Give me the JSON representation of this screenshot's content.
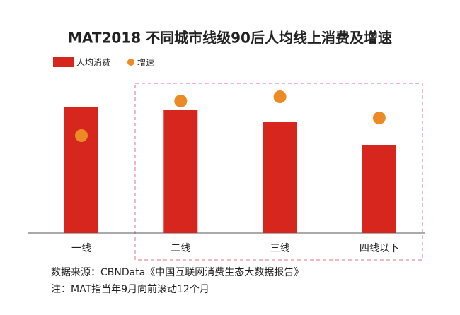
{
  "chart_data": {
    "type": "bar",
    "title": "MAT2018 不同城市线级90后人均线上消费及增速",
    "categories": [
      "一线",
      "二线",
      "三线",
      "四线以下"
    ],
    "series": [
      {
        "name": "人均消费",
        "type": "bar",
        "color": "#d7261e",
        "values": [
          178,
          174,
          157,
          125
        ]
      },
      {
        "name": "增速",
        "type": "scatter",
        "color": "#ec8a26",
        "values": [
          138,
          187,
          193,
          163
        ]
      }
    ],
    "ylim": [
      0,
      200
    ],
    "source": "数据来源：CBNData《中国互联网消费生态大数据报告》",
    "note": "注：MAT指当年9月向前滚动12个月"
  }
}
